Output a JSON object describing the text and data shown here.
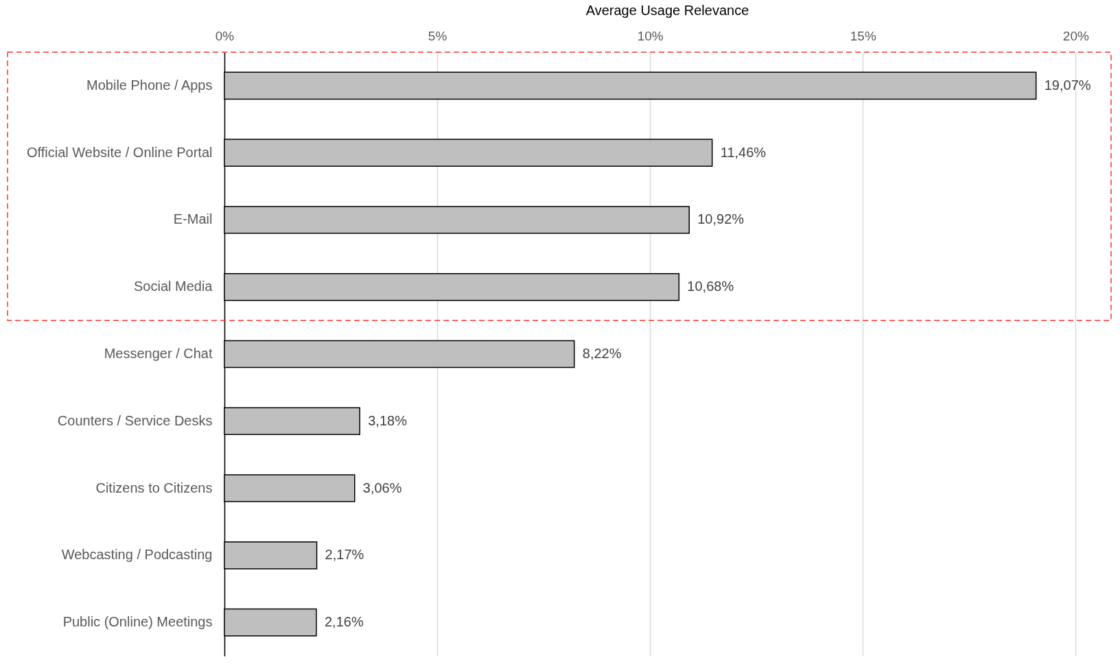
{
  "chart_data": {
    "type": "bar",
    "orientation": "horizontal",
    "xlabel": "Average Usage Relevance",
    "categories": [
      "Mobile Phone / Apps",
      "Official Website / Online Portal",
      "E-Mail",
      "Social Media",
      "Messenger / Chat",
      "Counters / Service Desks",
      "Citizens to Citizens",
      "Webcasting / Podcasting",
      "Public (Online) Meetings"
    ],
    "values": [
      19.07,
      11.46,
      10.92,
      10.68,
      8.22,
      3.18,
      3.06,
      2.17,
      2.16
    ],
    "value_labels": [
      "19,07%",
      "11,46%",
      "10,92%",
      "10,68%",
      "8,22%",
      "3,18%",
      "3,06%",
      "2,17%",
      "2,16%"
    ],
    "color": "#bfbfbf",
    "xlim": [
      0,
      20.8
    ],
    "xticks": [
      {
        "value": 0,
        "label": "0%"
      },
      {
        "value": 5,
        "label": "5%"
      },
      {
        "value": 10,
        "label": "10%"
      },
      {
        "value": 15,
        "label": "15%"
      },
      {
        "value": 20,
        "label": "20%"
      }
    ],
    "grid": "x"
  }
}
